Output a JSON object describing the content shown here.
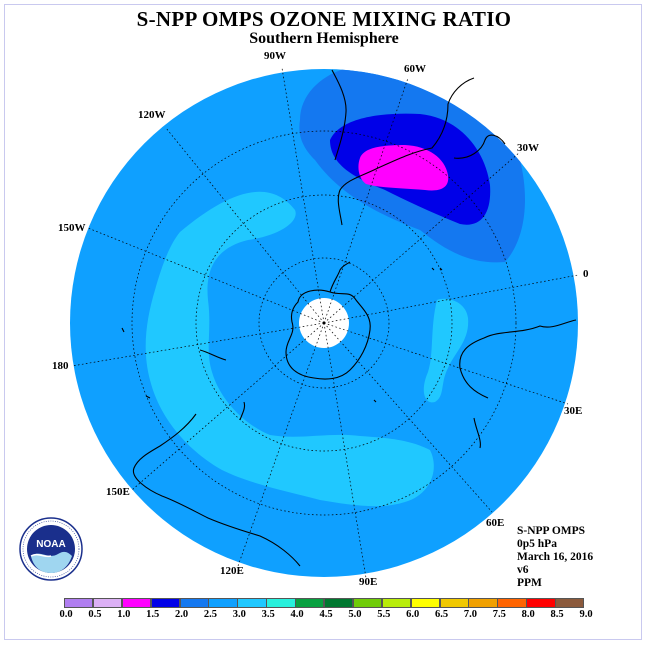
{
  "title": "S-NPP OMPS OZONE MIXING RATIO",
  "subtitle": "Southern Hemisphere",
  "info": {
    "instrument": "S-NPP OMPS",
    "level": "0p5 hPa",
    "date": "March 16, 2016",
    "version": "v6",
    "units": "PPM"
  },
  "longitude_labels": [
    "90W",
    "60W",
    "30W",
    "0",
    "30E",
    "60E",
    "90E",
    "120E",
    "150E",
    "180",
    "150W",
    "120W"
  ],
  "colorbar": {
    "ticks": [
      "0.0",
      "0.5",
      "1.0",
      "1.5",
      "2.0",
      "2.5",
      "3.0",
      "3.5",
      "4.0",
      "4.5",
      "5.0",
      "5.5",
      "6.0",
      "6.5",
      "7.0",
      "7.5",
      "8.0",
      "8.5",
      "9.0"
    ],
    "colors": [
      "#b07ef0",
      "#dcb0f5",
      "#ff00ff",
      "#0000e8",
      "#1478f0",
      "#0fa0ff",
      "#20c8ff",
      "#28f0dc",
      "#08a040",
      "#007830",
      "#70cc08",
      "#b8ec0a",
      "#ffff00",
      "#f0c800",
      "#f0a000",
      "#ff6400",
      "#ff0000",
      "#8b5a3c"
    ]
  },
  "logo_text": "NOAA",
  "colors": {
    "background_field": "#0fa0ff",
    "low_band": "#1478f0",
    "high_band": "#20c8ff",
    "max_band": "#ff00ff",
    "deep_band": "#0000e8",
    "polar_void": "#ffffff"
  }
}
